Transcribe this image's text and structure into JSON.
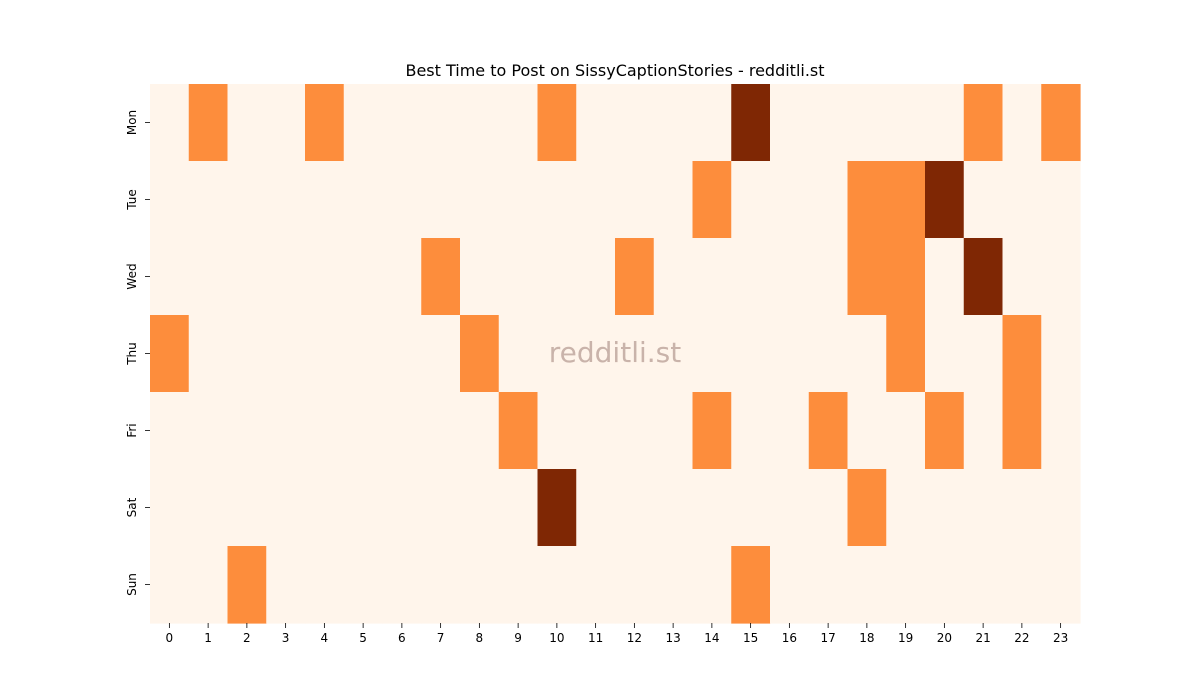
{
  "chart_data": {
    "type": "heatmap",
    "title": "Best Time to Post on SissyCaptionStories - redditli.st",
    "watermark": "redditli.st",
    "xlabel": "",
    "ylabel": "",
    "x_categories": [
      "0",
      "1",
      "2",
      "3",
      "4",
      "5",
      "6",
      "7",
      "8",
      "9",
      "10",
      "11",
      "12",
      "13",
      "14",
      "15",
      "16",
      "17",
      "18",
      "19",
      "20",
      "21",
      "22",
      "23"
    ],
    "y_categories": [
      "Mon",
      "Tue",
      "Wed",
      "Thu",
      "Fri",
      "Sat",
      "Sun"
    ],
    "values": [
      [
        0,
        1,
        0,
        0,
        1,
        0,
        0,
        0,
        0,
        0,
        1,
        0,
        0,
        0,
        0,
        2,
        0,
        0,
        0,
        0,
        0,
        1,
        0,
        1
      ],
      [
        0,
        0,
        0,
        0,
        0,
        0,
        0,
        0,
        0,
        0,
        0,
        0,
        0,
        0,
        1,
        0,
        0,
        0,
        1,
        1,
        2,
        0,
        0,
        0
      ],
      [
        0,
        0,
        0,
        0,
        0,
        0,
        0,
        1,
        0,
        0,
        0,
        0,
        1,
        0,
        0,
        0,
        0,
        0,
        1,
        1,
        0,
        2,
        0,
        0
      ],
      [
        1,
        0,
        0,
        0,
        0,
        0,
        0,
        0,
        1,
        0,
        0,
        0,
        0,
        0,
        0,
        0,
        0,
        0,
        0,
        1,
        0,
        0,
        1,
        0
      ],
      [
        0,
        0,
        0,
        0,
        0,
        0,
        0,
        0,
        0,
        1,
        0,
        0,
        0,
        0,
        1,
        0,
        0,
        1,
        0,
        0,
        1,
        0,
        1,
        0
      ],
      [
        0,
        0,
        0,
        0,
        0,
        0,
        0,
        0,
        0,
        0,
        2,
        0,
        0,
        0,
        0,
        0,
        0,
        0,
        1,
        0,
        0,
        0,
        0,
        0
      ],
      [
        0,
        0,
        1,
        0,
        0,
        0,
        0,
        0,
        0,
        0,
        0,
        0,
        0,
        0,
        0,
        1,
        0,
        0,
        0,
        0,
        0,
        0,
        0,
        0
      ]
    ],
    "colormap": {
      "0": "#fff5eb",
      "1": "#fd8d3c",
      "2": "#7f2704"
    },
    "grid": false,
    "legend": "none"
  }
}
